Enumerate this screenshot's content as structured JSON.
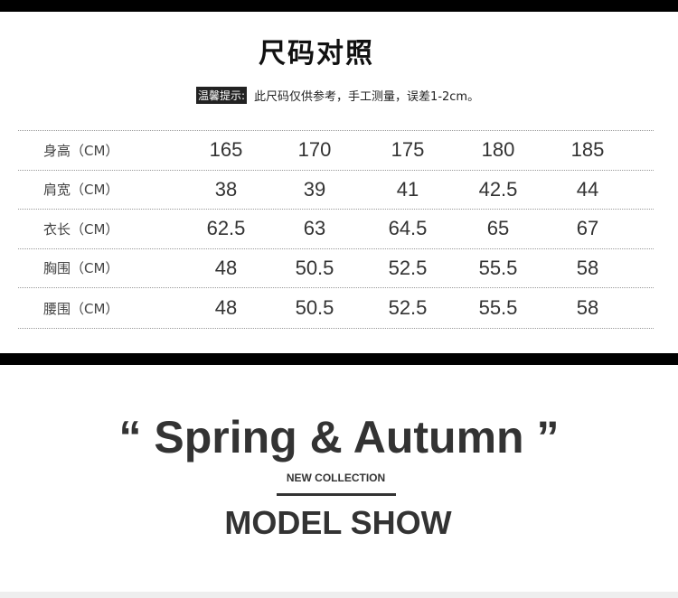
{
  "size_chart": {
    "title": "尺码对照",
    "tip_tag": "温馨提示:",
    "tip_text": "此尺码仅供参考，手工测量，误差1-2cm。",
    "rows": [
      {
        "label": "身高（CM）",
        "values": [
          "165",
          "170",
          "175",
          "180",
          "185"
        ]
      },
      {
        "label": "肩宽（CM）",
        "values": [
          "38",
          "39",
          "41",
          "42.5",
          "44"
        ]
      },
      {
        "label": "衣长（CM）",
        "values": [
          "62.5",
          "63",
          "64.5",
          "65",
          "67"
        ]
      },
      {
        "label": "胸围（CM）",
        "values": [
          "48",
          "50.5",
          "52.5",
          "55.5",
          "58"
        ]
      },
      {
        "label": "腰围（CM）",
        "values": [
          "48",
          "50.5",
          "52.5",
          "55.5",
          "58"
        ]
      }
    ]
  },
  "banner": {
    "headline": "“ Spring & Autumn ”",
    "subtitle": "NEW COLLECTION",
    "section_title": "MODEL SHOW"
  }
}
